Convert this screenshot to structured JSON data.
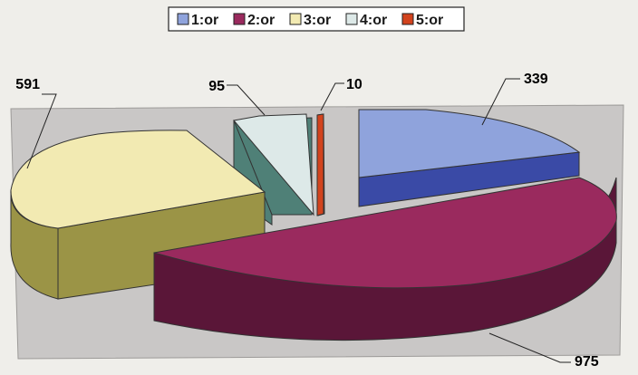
{
  "chart_data": {
    "type": "pie",
    "variant": "3d-exploded",
    "title": "",
    "legend_position": "top",
    "slices": [
      {
        "name": "1:or",
        "value": 339,
        "color": "#8fa3dc",
        "side_color": "#3a4aa6"
      },
      {
        "name": "2:or",
        "value": 975,
        "color": "#9a2a5e",
        "side_color": "#5a1638"
      },
      {
        "name": "3:or",
        "value": 591,
        "color": "#f2eab2",
        "side_color": "#9b9446"
      },
      {
        "name": "4:or",
        "value": 95,
        "color": "#dde9e8",
        "side_color": "#4f8077"
      },
      {
        "name": "5:or",
        "value": 10,
        "color": "#d2431d",
        "side_color": "#8f2a12"
      }
    ]
  }
}
